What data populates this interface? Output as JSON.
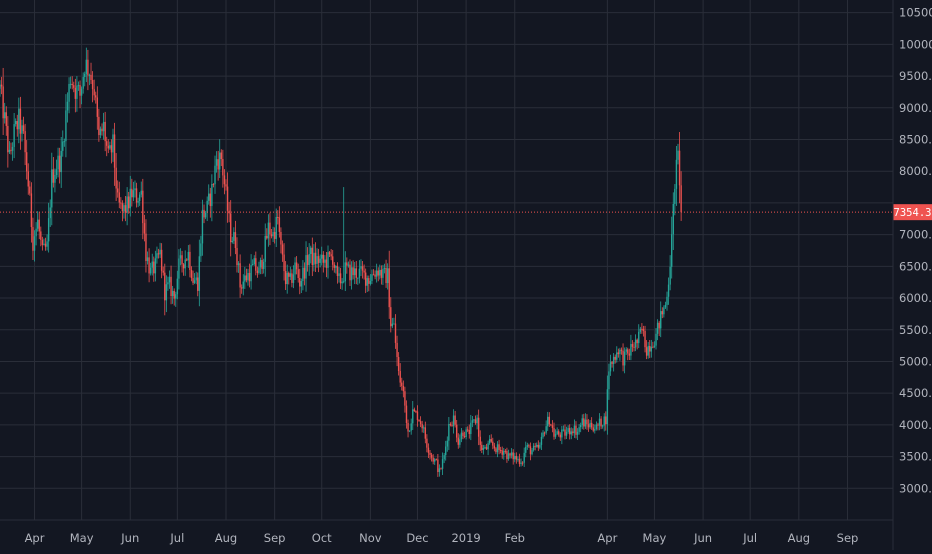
{
  "theme": {
    "background": "#131722",
    "grid": "#2a2e39",
    "axis_text": "#b2b5be",
    "up_color": "#26a69a",
    "down_color": "#ef5350",
    "last_price_color": "#ef5350"
  },
  "chart_data": {
    "type": "candlestick",
    "title": "",
    "xlabel": "",
    "ylabel": "",
    "ylim": [
      2500,
      10700
    ],
    "grid": true,
    "y_ticks": [
      3000,
      3500,
      4000,
      4500,
      5000,
      5500,
      6000,
      6500,
      7000,
      7500,
      8000,
      8500,
      9000,
      9500,
      10000,
      10500
    ],
    "y_tick_labels": [
      "3000.",
      "3500.",
      "4000.",
      "4500.",
      "5000.",
      "5500.",
      "6000.",
      "6500.",
      "7000.",
      "7500.",
      "8000.",
      "8500.",
      "9000.",
      "9500.",
      "10000.",
      "10500."
    ],
    "x_range": [
      "2018-03-10",
      "2019-09-30"
    ],
    "x_ticks": [
      {
        "date": "2018-04-01",
        "label": "Apr"
      },
      {
        "date": "2018-05-01",
        "label": "May"
      },
      {
        "date": "2018-06-01",
        "label": "Jun"
      },
      {
        "date": "2018-07-01",
        "label": "Jul"
      },
      {
        "date": "2018-08-01",
        "label": "Aug"
      },
      {
        "date": "2018-09-01",
        "label": "Sep"
      },
      {
        "date": "2018-10-01",
        "label": "Oct"
      },
      {
        "date": "2018-11-01",
        "label": "Nov"
      },
      {
        "date": "2018-12-01",
        "label": "Dec"
      },
      {
        "date": "2019-01-01",
        "label": "2019"
      },
      {
        "date": "2019-02-01",
        "label": "Feb"
      },
      {
        "date": "2019-04-01",
        "label": "Apr"
      },
      {
        "date": "2019-05-01",
        "label": "May"
      },
      {
        "date": "2019-06-01",
        "label": "Jun"
      },
      {
        "date": "2019-07-01",
        "label": "Jul"
      },
      {
        "date": "2019-08-01",
        "label": "Aug"
      },
      {
        "date": "2019-09-01",
        "label": "Sep"
      }
    ],
    "close_anchors": [
      [
        "2018-03-10",
        9300
      ],
      [
        "2018-03-13",
        8800
      ],
      [
        "2018-03-16",
        8200
      ],
      [
        "2018-03-19",
        8600
      ],
      [
        "2018-03-22",
        8800
      ],
      [
        "2018-03-25",
        8500
      ],
      [
        "2018-03-28",
        7800
      ],
      [
        "2018-03-31",
        6900
      ],
      [
        "2018-04-03",
        7200
      ],
      [
        "2018-04-06",
        6700
      ],
      [
        "2018-04-09",
        6800
      ],
      [
        "2018-04-12",
        7900
      ],
      [
        "2018-04-15",
        8100
      ],
      [
        "2018-04-18",
        8200
      ],
      [
        "2018-04-21",
        8900
      ],
      [
        "2018-04-24",
        9500
      ],
      [
        "2018-04-27",
        9300
      ],
      [
        "2018-04-30",
        9200
      ],
      [
        "2018-05-03",
        9700
      ],
      [
        "2018-05-06",
        9600
      ],
      [
        "2018-05-09",
        9300
      ],
      [
        "2018-05-12",
        8500
      ],
      [
        "2018-05-15",
        8700
      ],
      [
        "2018-05-18",
        8200
      ],
      [
        "2018-05-21",
        8400
      ],
      [
        "2018-05-24",
        7500
      ],
      [
        "2018-05-27",
        7350
      ],
      [
        "2018-05-30",
        7450
      ],
      [
        "2018-06-02",
        7650
      ],
      [
        "2018-06-05",
        7600
      ],
      [
        "2018-06-08",
        7650
      ],
      [
        "2018-06-11",
        6700
      ],
      [
        "2018-06-14",
        6400
      ],
      [
        "2018-06-17",
        6500
      ],
      [
        "2018-06-20",
        6700
      ],
      [
        "2018-06-23",
        6100
      ],
      [
        "2018-06-26",
        6200
      ],
      [
        "2018-06-29",
        6000
      ],
      [
        "2018-07-02",
        6500
      ],
      [
        "2018-07-05",
        6600
      ],
      [
        "2018-07-08",
        6700
      ],
      [
        "2018-07-11",
        6300
      ],
      [
        "2018-07-14",
        6250
      ],
      [
        "2018-07-17",
        7300
      ],
      [
        "2018-07-20",
        7400
      ],
      [
        "2018-07-23",
        7700
      ],
      [
        "2018-07-26",
        8200
      ],
      [
        "2018-07-29",
        8200
      ],
      [
        "2018-08-01",
        7600
      ],
      [
        "2018-08-04",
        7000
      ],
      [
        "2018-08-07",
        6900
      ],
      [
        "2018-08-10",
        6200
      ],
      [
        "2018-08-13",
        6300
      ],
      [
        "2018-08-16",
        6400
      ],
      [
        "2018-08-19",
        6500
      ],
      [
        "2018-08-22",
        6400
      ],
      [
        "2018-08-25",
        6700
      ],
      [
        "2018-08-28",
        7100
      ],
      [
        "2018-08-31",
        7000
      ],
      [
        "2018-09-03",
        7250
      ],
      [
        "2018-09-05",
        6750
      ],
      [
        "2018-09-08",
        6300
      ],
      [
        "2018-09-11",
        6250
      ],
      [
        "2018-09-14",
        6500
      ],
      [
        "2018-09-17",
        6250
      ],
      [
        "2018-09-20",
        6450
      ],
      [
        "2018-09-23",
        6700
      ],
      [
        "2018-09-26",
        6600
      ],
      [
        "2018-09-29",
        6600
      ],
      [
        "2018-10-02",
        6550
      ],
      [
        "2018-10-05",
        6600
      ],
      [
        "2018-10-08",
        6650
      ],
      [
        "2018-10-11",
        6250
      ],
      [
        "2018-10-14",
        6300
      ],
      [
        "2018-10-16",
        6450
      ],
      [
        "2018-10-19",
        6400
      ],
      [
        "2018-10-22",
        6400
      ],
      [
        "2018-10-25",
        6400
      ],
      [
        "2018-10-28",
        6350
      ],
      [
        "2018-10-31",
        6300
      ],
      [
        "2018-11-03",
        6400
      ],
      [
        "2018-11-06",
        6450
      ],
      [
        "2018-11-09",
        6350
      ],
      [
        "2018-11-12",
        6350
      ],
      [
        "2018-11-14",
        5600
      ],
      [
        "2018-11-16",
        5550
      ],
      [
        "2018-11-19",
        4800
      ],
      [
        "2018-11-22",
        4500
      ],
      [
        "2018-11-25",
        3900
      ],
      [
        "2018-11-28",
        4200
      ],
      [
        "2018-12-01",
        4150
      ],
      [
        "2018-12-04",
        4000
      ],
      [
        "2018-12-07",
        3700
      ],
      [
        "2018-12-10",
        3500
      ],
      [
        "2018-12-13",
        3400
      ],
      [
        "2018-12-15",
        3250
      ],
      [
        "2018-12-18",
        3500
      ],
      [
        "2018-12-21",
        4000
      ],
      [
        "2018-12-24",
        4100
      ],
      [
        "2018-12-27",
        3750
      ],
      [
        "2018-12-30",
        3900
      ],
      [
        "2019-01-02",
        3850
      ],
      [
        "2019-01-05",
        4000
      ],
      [
        "2019-01-08",
        4100
      ],
      [
        "2019-01-10",
        3650
      ],
      [
        "2019-01-13",
        3600
      ],
      [
        "2019-01-16",
        3700
      ],
      [
        "2019-01-19",
        3650
      ],
      [
        "2019-01-22",
        3600
      ],
      [
        "2019-01-25",
        3600
      ],
      [
        "2019-01-28",
        3500
      ],
      [
        "2019-01-31",
        3500
      ],
      [
        "2019-02-03",
        3450
      ],
      [
        "2019-02-06",
        3450
      ],
      [
        "2019-02-08",
        3650
      ],
      [
        "2019-02-11",
        3600
      ],
      [
        "2019-02-14",
        3600
      ],
      [
        "2019-02-17",
        3650
      ],
      [
        "2019-02-20",
        3950
      ],
      [
        "2019-02-23",
        4100
      ],
      [
        "2019-02-26",
        3850
      ],
      [
        "2019-03-01",
        3850
      ],
      [
        "2019-03-04",
        3850
      ],
      [
        "2019-03-07",
        3900
      ],
      [
        "2019-03-10",
        3950
      ],
      [
        "2019-03-13",
        3900
      ],
      [
        "2019-03-16",
        4050
      ],
      [
        "2019-03-19",
        4000
      ],
      [
        "2019-03-22",
        4000
      ],
      [
        "2019-03-25",
        3950
      ],
      [
        "2019-03-28",
        4050
      ],
      [
        "2019-03-31",
        4100
      ],
      [
        "2019-04-02",
        4900
      ],
      [
        "2019-04-05",
        5050
      ],
      [
        "2019-04-08",
        5200
      ],
      [
        "2019-04-11",
        5050
      ],
      [
        "2019-04-14",
        5100
      ],
      [
        "2019-04-17",
        5250
      ],
      [
        "2019-04-20",
        5300
      ],
      [
        "2019-04-23",
        5500
      ],
      [
        "2019-04-26",
        5200
      ],
      [
        "2019-04-29",
        5300
      ],
      [
        "2019-05-02",
        5400
      ],
      [
        "2019-05-05",
        5700
      ],
      [
        "2019-05-08",
        5900
      ],
      [
        "2019-05-10",
        6300
      ],
      [
        "2019-05-12",
        6900
      ],
      [
        "2019-05-14",
        7850
      ],
      [
        "2019-05-16",
        8200
      ],
      [
        "2019-05-17",
        7900
      ],
      [
        "2019-05-18",
        7354.3
      ]
    ],
    "last_price": 7354.3,
    "last_price_label": "7354.3"
  }
}
